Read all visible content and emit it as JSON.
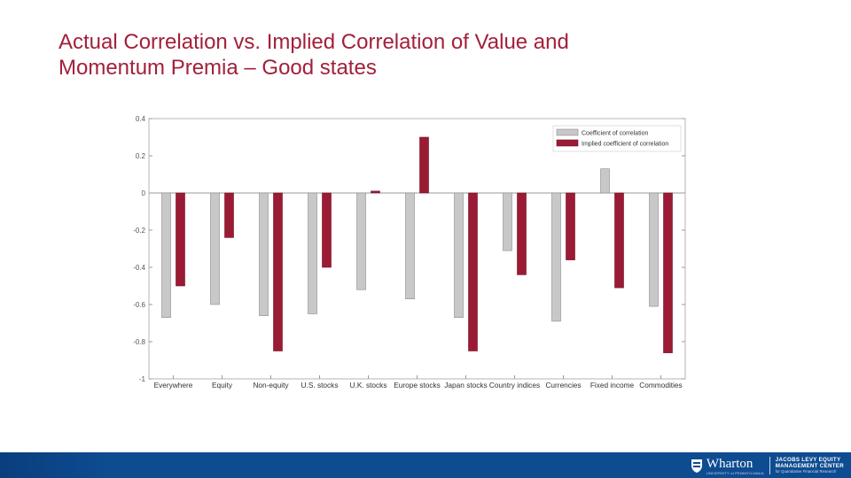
{
  "slide": {
    "title_line1": "Actual Correlation vs. Implied Correlation of Value and",
    "title_line2": "Momentum Premia – Good states",
    "title_color": "#a3203a"
  },
  "chart_data": {
    "type": "bar",
    "categories": [
      "Everywhere",
      "Equity",
      "Non-equity",
      "U.S. stocks",
      "U.K. stocks",
      "Europe stocks",
      "Japan stocks",
      "Country indices",
      "Currencies",
      "Fixed income",
      "Commodities"
    ],
    "series": [
      {
        "name": "Coefficient of correlation",
        "color": "#c8c8c8",
        "values": [
          -0.67,
          -0.6,
          -0.66,
          -0.65,
          -0.52,
          -0.57,
          -0.67,
          -0.31,
          -0.69,
          0.13,
          -0.61
        ]
      },
      {
        "name": "Implied coefficient of correlation",
        "color": "#9b1b34",
        "values": [
          -0.5,
          -0.24,
          -0.85,
          -0.4,
          0.01,
          0.3,
          -0.85,
          -0.44,
          -0.36,
          -0.51,
          -0.86
        ]
      }
    ],
    "yticks": [
      "0.4",
      "0.2",
      "0",
      "-0.2",
      "-0.4",
      "-0.6",
      "-0.8",
      "-1"
    ],
    "ylim": [
      -1,
      0.4
    ],
    "legend_position": "top-right",
    "grid": false
  },
  "footer": {
    "brand_name": "Wharton",
    "brand_sub": "UNIVERSITY of PENNSYLVANIA",
    "center_line1": "JACOBS LEVY EQUITY",
    "center_line2": "MANAGEMENT CENTER",
    "center_line3": "for Quantitative Financial Research",
    "bar_color": "#0e4c92"
  }
}
